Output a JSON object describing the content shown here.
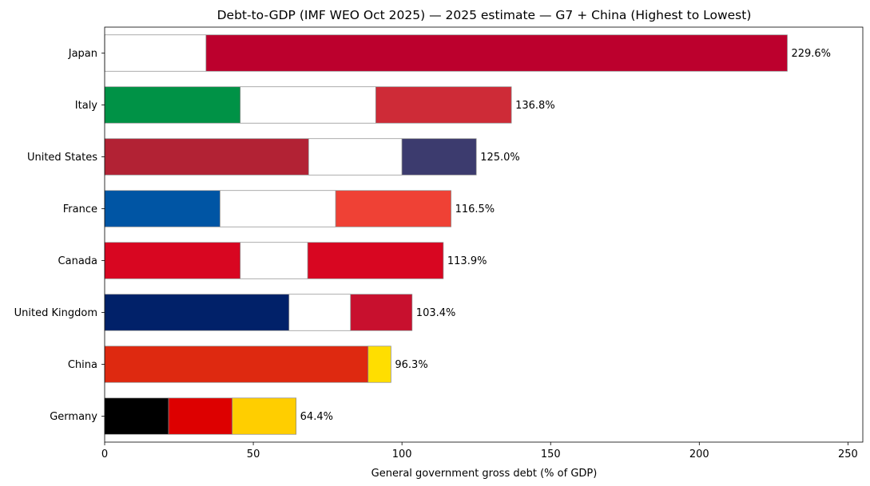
{
  "chart_data": {
    "type": "bar",
    "orientation": "horizontal",
    "title": "Debt-to-GDP (IMF WEO Oct 2025) — 2025 estimate — G7 + China (Highest to Lowest)",
    "xlabel": "General government gross debt (% of GDP)",
    "ylabel": "",
    "xlim": [
      0,
      255
    ],
    "xticks": [
      0,
      50,
      100,
      150,
      200,
      250
    ],
    "grid": false,
    "bars": [
      {
        "category": "Japan",
        "value": 229.6,
        "label": "229.6%",
        "segments": [
          {
            "from": 0,
            "to": 34.1,
            "color": "#ffffff"
          },
          {
            "from": 34.1,
            "to": 229.6,
            "color": "#bc002d"
          }
        ]
      },
      {
        "category": "Italy",
        "value": 136.8,
        "label": "136.8%",
        "segments": [
          {
            "from": 0,
            "to": 45.6,
            "color": "#009246"
          },
          {
            "from": 45.6,
            "to": 91.2,
            "color": "#ffffff"
          },
          {
            "from": 91.2,
            "to": 136.8,
            "color": "#ce2b37"
          }
        ]
      },
      {
        "category": "United States",
        "value": 125.0,
        "label": "125.0%",
        "segments": [
          {
            "from": 0,
            "to": 68.6,
            "color": "#b22234"
          },
          {
            "from": 68.6,
            "to": 100,
            "color": "#ffffff"
          },
          {
            "from": 100,
            "to": 125.0,
            "color": "#3c3b6e"
          }
        ]
      },
      {
        "category": "France",
        "value": 116.5,
        "label": "116.5%",
        "segments": [
          {
            "from": 0,
            "to": 38.8,
            "color": "#0055a4"
          },
          {
            "from": 38.8,
            "to": 77.7,
            "color": "#ffffff"
          },
          {
            "from": 77.7,
            "to": 116.5,
            "color": "#ef4135"
          }
        ]
      },
      {
        "category": "Canada",
        "value": 113.9,
        "label": "113.9%",
        "segments": [
          {
            "from": 0,
            "to": 45.6,
            "color": "#d80621"
          },
          {
            "from": 45.6,
            "to": 68.3,
            "color": "#ffffff"
          },
          {
            "from": 68.3,
            "to": 113.9,
            "color": "#d80621"
          }
        ]
      },
      {
        "category": "United Kingdom",
        "value": 103.4,
        "label": "103.4%",
        "segments": [
          {
            "from": 0,
            "to": 62.0,
            "color": "#012169"
          },
          {
            "from": 62.0,
            "to": 82.7,
            "color": "#ffffff"
          },
          {
            "from": 82.7,
            "to": 103.4,
            "color": "#c8102e"
          }
        ]
      },
      {
        "category": "China",
        "value": 96.3,
        "label": "96.3%",
        "segments": [
          {
            "from": 0,
            "to": 88.6,
            "color": "#de2910"
          },
          {
            "from": 88.6,
            "to": 96.3,
            "color": "#ffde00"
          }
        ]
      },
      {
        "category": "Germany",
        "value": 64.4,
        "label": "64.4%",
        "segments": [
          {
            "from": 0,
            "to": 21.5,
            "color": "#000000"
          },
          {
            "from": 21.5,
            "to": 42.9,
            "color": "#dd0000"
          },
          {
            "from": 42.9,
            "to": 64.4,
            "color": "#ffce00"
          }
        ]
      }
    ]
  }
}
